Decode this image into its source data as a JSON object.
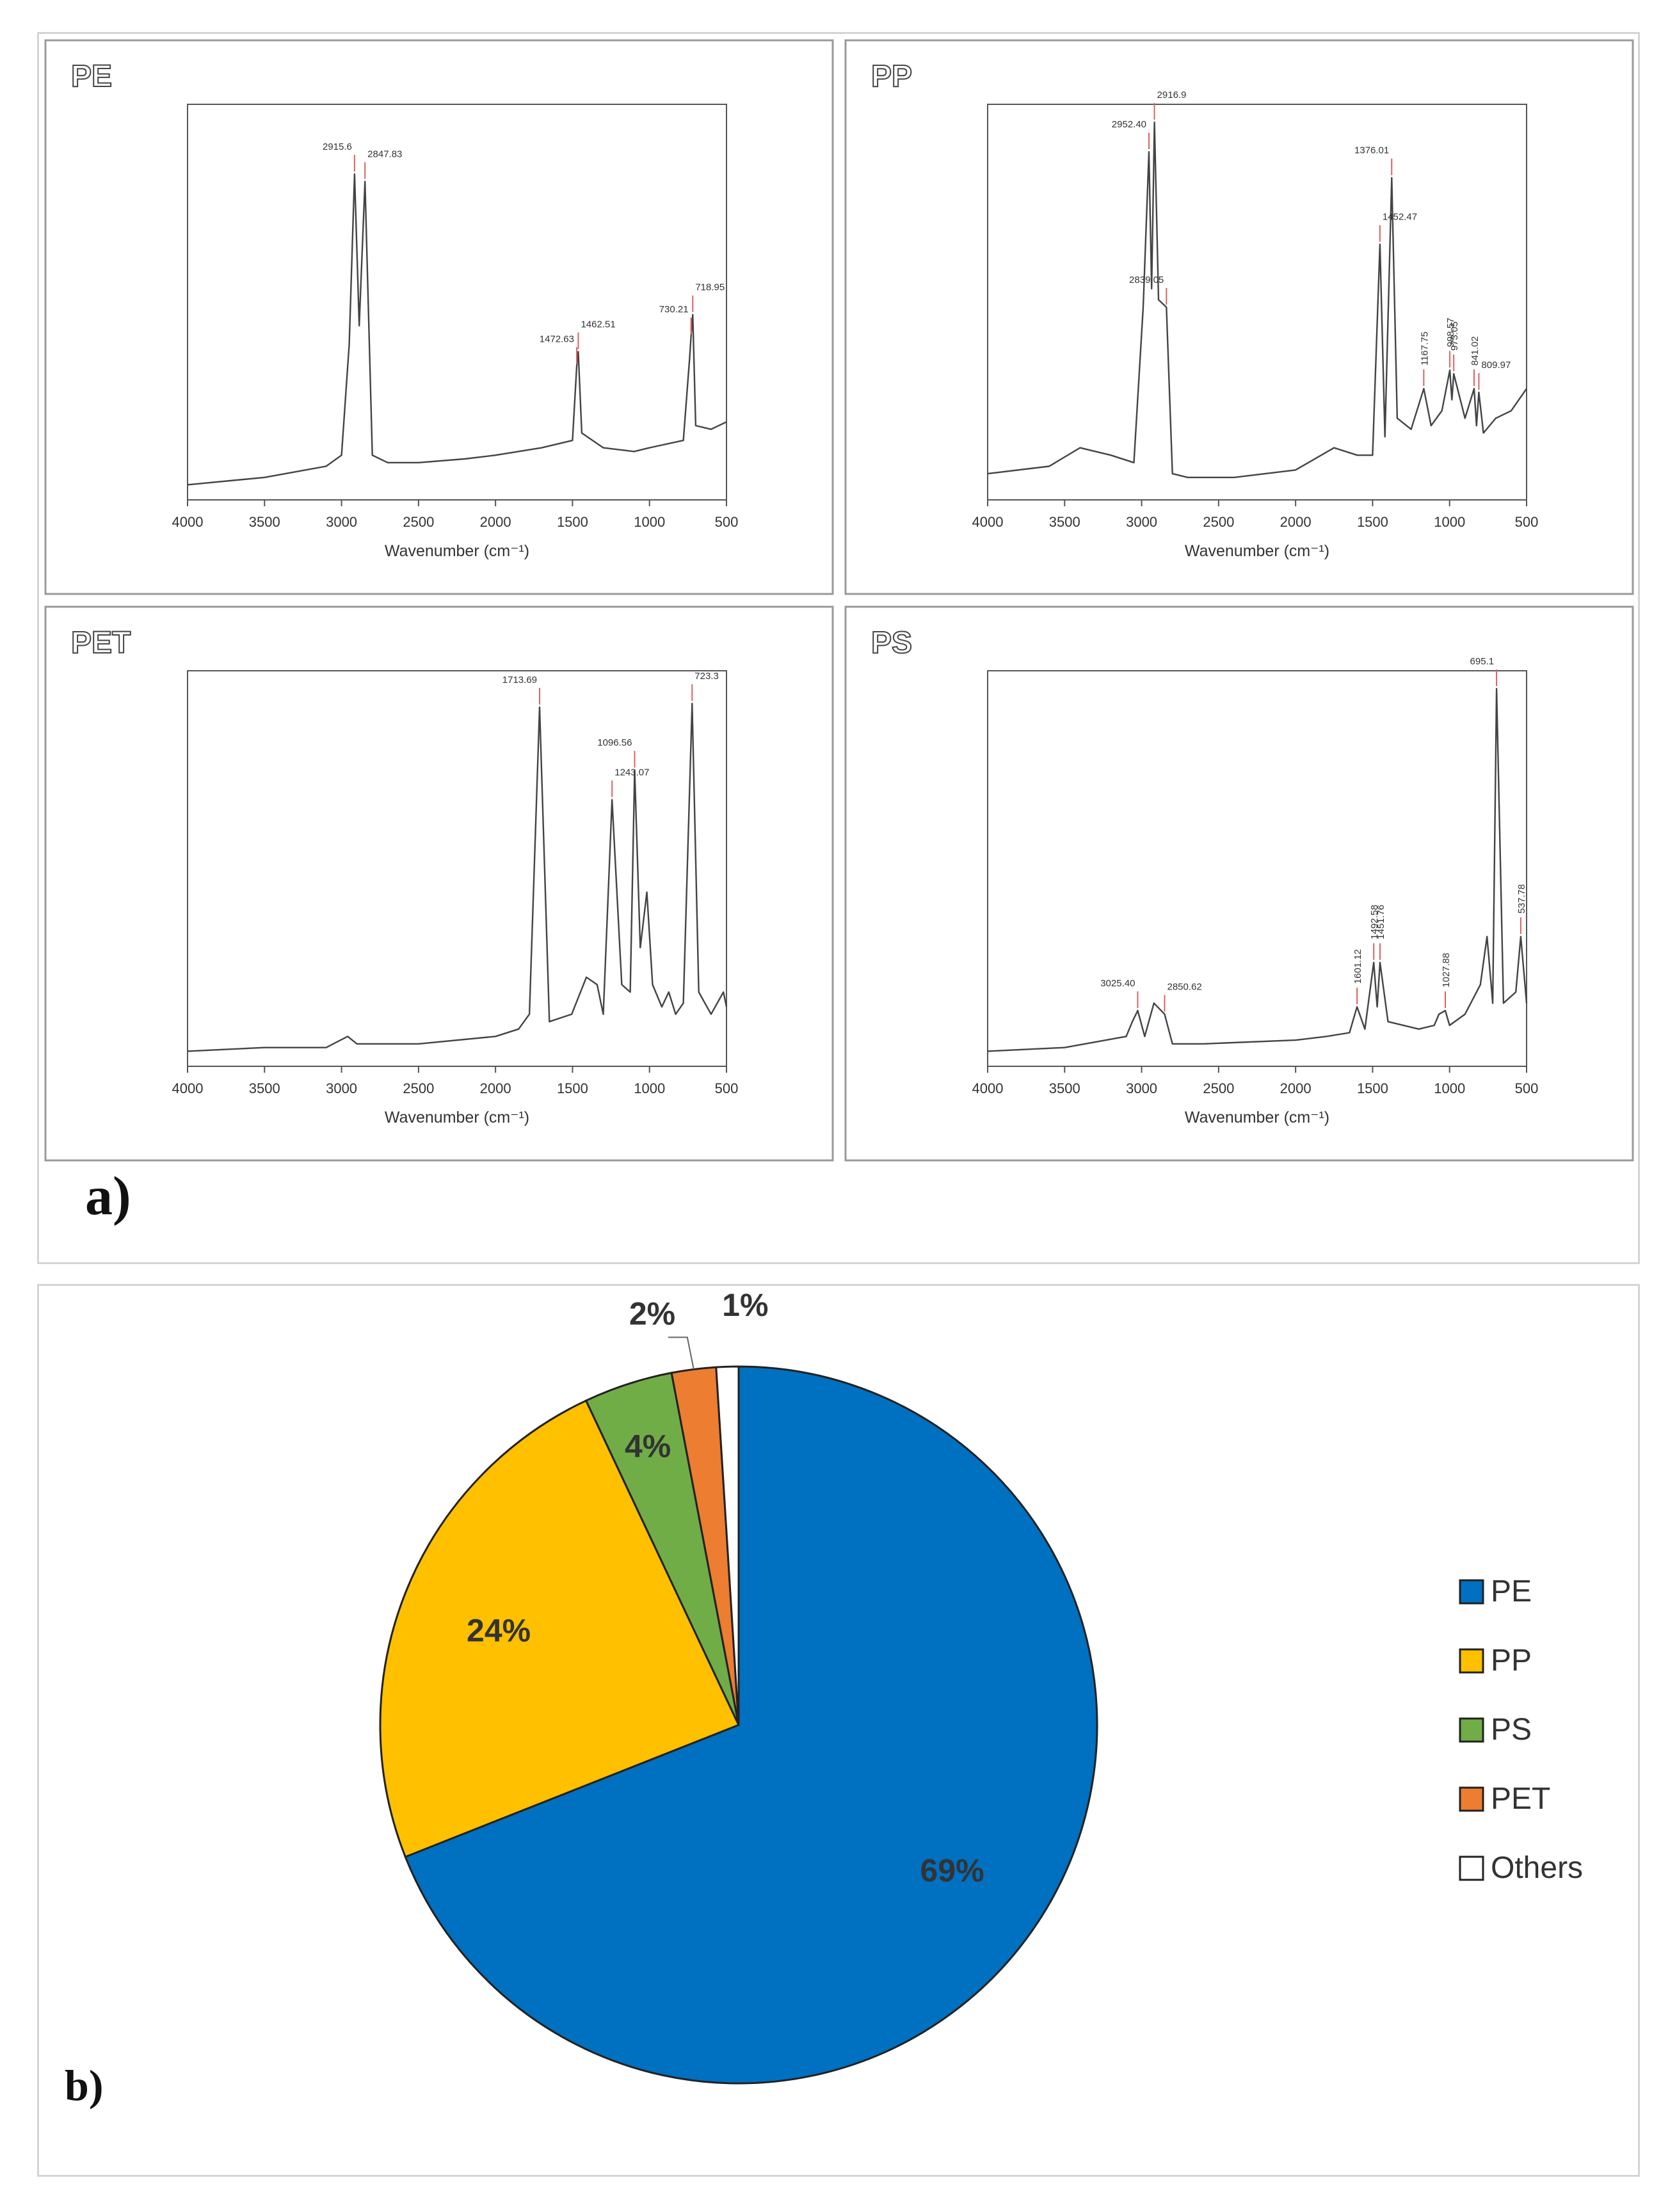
{
  "panel_a": {
    "label": "a)",
    "spectra": [
      {
        "title": "PE",
        "xlabel": "Wavenumber (cm⁻¹)",
        "xlim": [
          4000,
          500
        ],
        "ticks": [
          "4000",
          "3500",
          "3000",
          "2500",
          "2000",
          "1500",
          "1000",
          "500"
        ],
        "peaks": [
          {
            "wn": 2915.6,
            "label": "2915.6"
          },
          {
            "wn": 2847.83,
            "label": "2847.83"
          },
          {
            "wn": 1472.63,
            "label": "1472.63"
          },
          {
            "wn": 1462.51,
            "label": "1462.51"
          },
          {
            "wn": 730.21,
            "label": "730.21"
          },
          {
            "wn": 718.95,
            "label": "718.95"
          }
        ]
      },
      {
        "title": "PP",
        "xlabel": "Wavenumber (cm⁻¹)",
        "xlim": [
          4000,
          500
        ],
        "ticks": [
          "4000",
          "3500",
          "3000",
          "2500",
          "2000",
          "1500",
          "1000",
          "500"
        ],
        "peaks": [
          {
            "wn": 2952.4,
            "label": "2952.40"
          },
          {
            "wn": 2916.9,
            "label": "2916.9"
          },
          {
            "wn": 2839.05,
            "label": "2839.05"
          },
          {
            "wn": 1452.47,
            "label": "1452.47"
          },
          {
            "wn": 1376.01,
            "label": "1376.01"
          },
          {
            "wn": 1167.75,
            "label": "1167.75"
          },
          {
            "wn": 998.57,
            "label": "998.57"
          },
          {
            "wn": 973.05,
            "label": "973.05"
          },
          {
            "wn": 841.02,
            "label": "841.02"
          },
          {
            "wn": 809.97,
            "label": "809.97"
          }
        ]
      },
      {
        "title": "PET",
        "xlabel": "Wavenumber (cm⁻¹)",
        "xlim": [
          4000,
          500
        ],
        "ticks": [
          "4000",
          "3500",
          "3000",
          "2500",
          "2000",
          "1500",
          "1000",
          "500"
        ],
        "peaks": [
          {
            "wn": 1713.69,
            "label": "1713.69"
          },
          {
            "wn": 1243.07,
            "label": "1243.07"
          },
          {
            "wn": 1096.56,
            "label": "1096.56"
          },
          {
            "wn": 723.3,
            "label": "723.3"
          }
        ]
      },
      {
        "title": "PS",
        "xlabel": "Wavenumber (cm⁻¹)",
        "xlim": [
          4000,
          500
        ],
        "ticks": [
          "4000",
          "3500",
          "3000",
          "2500",
          "2000",
          "1500",
          "1000",
          "500"
        ],
        "peaks": [
          {
            "wn": 3025.4,
            "label": "3025.40"
          },
          {
            "wn": 2850.62,
            "label": "2850.62"
          },
          {
            "wn": 1601.12,
            "label": "1601.12"
          },
          {
            "wn": 1492.58,
            "label": "1492.58"
          },
          {
            "wn": 1451.76,
            "label": "1451.76"
          },
          {
            "wn": 1027.88,
            "label": "1027.88"
          },
          {
            "wn": 695.1,
            "label": "695.1"
          },
          {
            "wn": 537.78,
            "label": "537.78"
          }
        ]
      }
    ]
  },
  "panel_b": {
    "label": "b)"
  },
  "chart_data": [
    {
      "type": "line",
      "title": "PE",
      "xlabel": "Wavenumber (cm⁻¹)",
      "ylabel": "",
      "xlim": [
        4000,
        500
      ],
      "x": [
        4000,
        3500,
        3100,
        3000,
        2950,
        2915.6,
        2885,
        2847.83,
        2800,
        2700,
        2500,
        2200,
        2000,
        1700,
        1500,
        1472.63,
        1462.51,
        1440,
        1300,
        1100,
        1000,
        780,
        740,
        730.21,
        718.95,
        700,
        600,
        500
      ],
      "y": [
        0.02,
        0.04,
        0.07,
        0.1,
        0.4,
        0.86,
        0.45,
        0.84,
        0.1,
        0.08,
        0.08,
        0.09,
        0.1,
        0.12,
        0.14,
        0.34,
        0.38,
        0.16,
        0.12,
        0.11,
        0.12,
        0.14,
        0.36,
        0.42,
        0.48,
        0.18,
        0.17,
        0.19
      ]
    },
    {
      "type": "line",
      "title": "PP",
      "xlabel": "Wavenumber (cm⁻¹)",
      "ylabel": "",
      "xlim": [
        4000,
        500
      ],
      "x": [
        4000,
        3600,
        3400,
        3200,
        3050,
        2990,
        2952.4,
        2935,
        2916.9,
        2890,
        2839.05,
        2800,
        2700,
        2400,
        2000,
        1750,
        1600,
        1500,
        1452.47,
        1420,
        1376.01,
        1340,
        1250,
        1167.75,
        1120,
        1050,
        998.57,
        985,
        973.05,
        900,
        841.02,
        825,
        809.97,
        780,
        700,
        600,
        500
      ],
      "y": [
        0.05,
        0.07,
        0.12,
        0.1,
        0.08,
        0.5,
        0.92,
        0.55,
        1.0,
        0.52,
        0.5,
        0.05,
        0.04,
        0.04,
        0.06,
        0.12,
        0.1,
        0.1,
        0.67,
        0.15,
        0.85,
        0.2,
        0.17,
        0.28,
        0.18,
        0.22,
        0.33,
        0.25,
        0.32,
        0.2,
        0.28,
        0.18,
        0.27,
        0.16,
        0.2,
        0.22,
        0.28
      ]
    },
    {
      "type": "line",
      "title": "PET",
      "xlabel": "Wavenumber (cm⁻¹)",
      "ylabel": "",
      "xlim": [
        4000,
        500
      ],
      "x": [
        4000,
        3500,
        3100,
        2960,
        2900,
        2500,
        2000,
        1850,
        1780,
        1713.69,
        1650,
        1505,
        1410,
        1340,
        1300,
        1243.07,
        1180,
        1125,
        1096.56,
        1060,
        1017,
        980,
        920,
        875,
        830,
        780,
        723.3,
        680,
        600,
        520,
        500
      ],
      "y": [
        0.02,
        0.03,
        0.03,
        0.06,
        0.04,
        0.04,
        0.06,
        0.08,
        0.12,
        0.95,
        0.1,
        0.12,
        0.22,
        0.2,
        0.12,
        0.7,
        0.2,
        0.18,
        0.78,
        0.3,
        0.45,
        0.2,
        0.14,
        0.18,
        0.12,
        0.15,
        0.96,
        0.18,
        0.12,
        0.18,
        0.14
      ]
    },
    {
      "type": "line",
      "title": "PS",
      "xlabel": "Wavenumber (cm⁻¹)",
      "ylabel": "",
      "xlim": [
        4000,
        500
      ],
      "x": [
        4000,
        3500,
        3100,
        3060,
        3025.4,
        2980,
        2920,
        2850.62,
        2800,
        2600,
        2000,
        1800,
        1650,
        1601.12,
        1550,
        1492.58,
        1470,
        1451.76,
        1400,
        1200,
        1100,
        1069,
        1027.88,
        1000,
        900,
        800,
        757,
        720,
        695.1,
        650,
        570,
        537.78,
        500
      ],
      "y": [
        0.02,
        0.03,
        0.06,
        0.1,
        0.13,
        0.06,
        0.15,
        0.12,
        0.04,
        0.04,
        0.05,
        0.06,
        0.07,
        0.14,
        0.08,
        0.26,
        0.14,
        0.26,
        0.1,
        0.08,
        0.09,
        0.12,
        0.13,
        0.09,
        0.12,
        0.2,
        0.33,
        0.15,
        1.0,
        0.15,
        0.18,
        0.33,
        0.15
      ]
    },
    {
      "type": "pie",
      "title": "",
      "categories": [
        "PE",
        "PP",
        "PS",
        "PET",
        "Others"
      ],
      "values": [
        69,
        24,
        4,
        2,
        1
      ],
      "labels": [
        "69%",
        "24%",
        "4%",
        "2%",
        "1%"
      ],
      "colors": [
        "#0070C0",
        "#FFC000",
        "#70AD47",
        "#ED7D31",
        "#FFFFFF"
      ],
      "legend_position": "right"
    }
  ]
}
